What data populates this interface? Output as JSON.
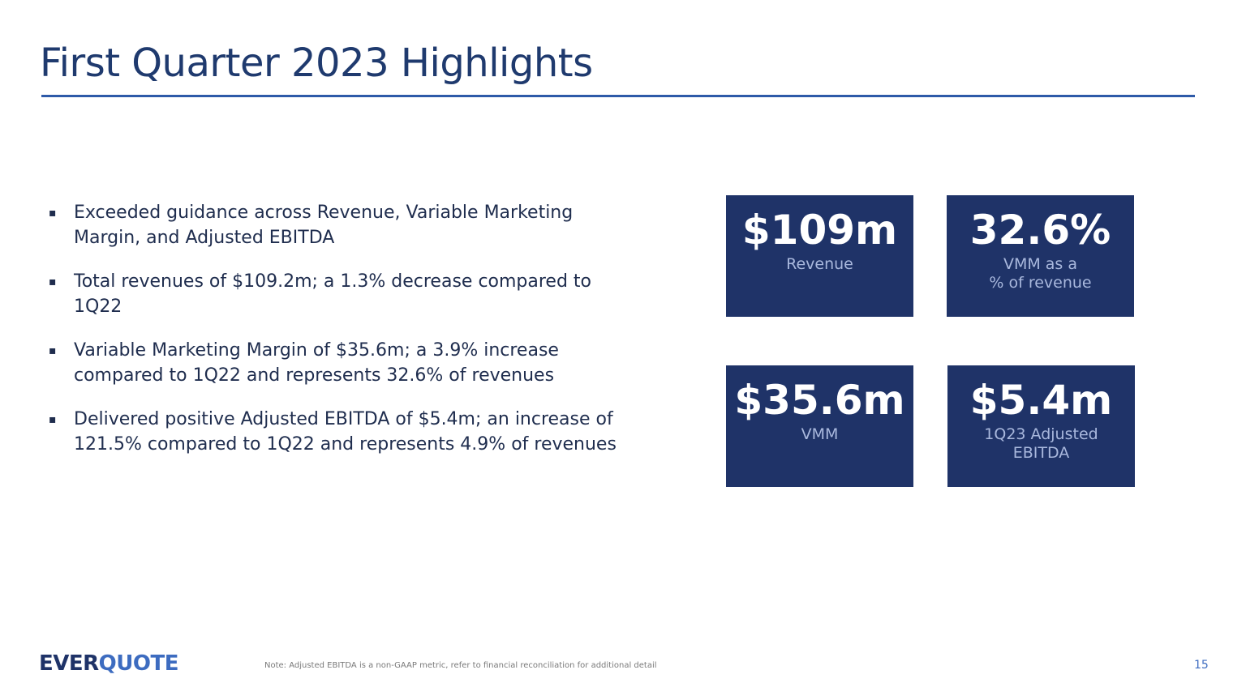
{
  "header": {
    "title": "First Quarter 2023 Highlights"
  },
  "bullets": [
    "Exceeded guidance across Revenue, Variable Marketing Margin, and Adjusted EBITDA",
    "Total revenues of $109.2m; a 1.3% decrease compared to 1Q22",
    "Variable Marketing Margin of $35.6m; a 3.9% increase compared to 1Q22 and represents 32.6% of revenues",
    "Delivered positive Adjusted EBITDA of $5.4m; an increase of 121.5% compared to 1Q22 and represents 4.9% of revenues"
  ],
  "tiles": [
    {
      "value": "$109m",
      "label_lines": [
        "Revenue"
      ]
    },
    {
      "value": "32.6%",
      "label_lines": [
        "VMM as a",
        "% of revenue"
      ]
    },
    {
      "value": "$35.6m",
      "label_lines": [
        "VMM"
      ]
    },
    {
      "value": "$5.4m",
      "label_lines": [
        "1Q23 Adjusted",
        "EBITDA"
      ]
    }
  ],
  "footer": {
    "logo": [
      "EVER",
      "QUOTE"
    ],
    "note": "Note: Adjusted EBITDA is a non-GAAP metric, refer to financial reconciliation for additional detail",
    "page_number": "15"
  }
}
